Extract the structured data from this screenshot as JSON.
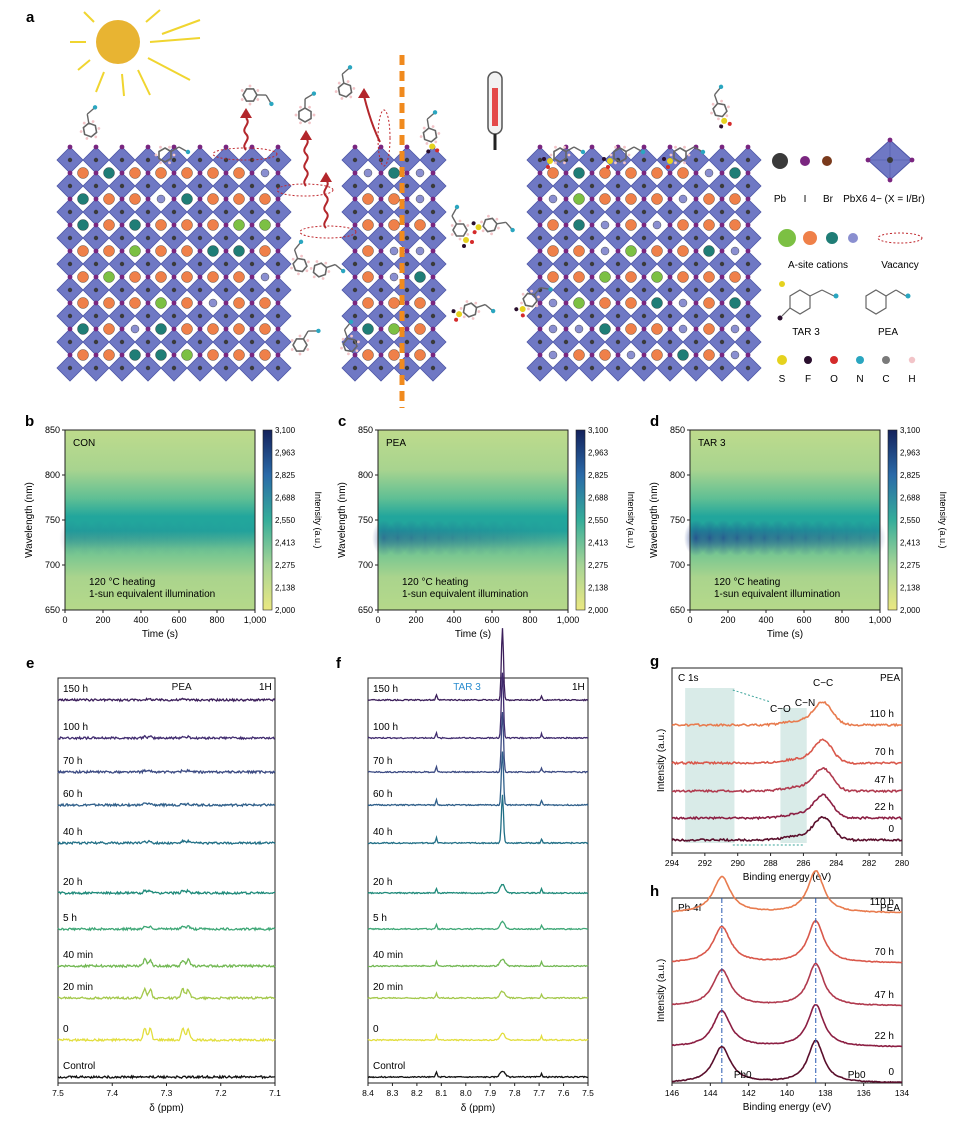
{
  "panel_a": {
    "letter": "a",
    "legend": {
      "elements": [
        "Pb",
        "I",
        "Br"
      ],
      "octahedron_label": "PbX6 4− (X = I/Br)",
      "a_site_label": "A-site cations",
      "vacancy_label": "Vacancy",
      "tar3_label": "TAR 3",
      "pea_label": "PEA",
      "atoms": [
        "S",
        "F",
        "O",
        "N",
        "C",
        "H"
      ]
    },
    "colors": {
      "octahedron": "#6f78c4",
      "sun": "#e8b432",
      "arrow": "#b3262b",
      "dashed_line": "#f08a1e",
      "pb": "#3a3a3a",
      "iodine": "#7a2680",
      "br": "#7a3a1c"
    }
  },
  "heatmaps": [
    {
      "letter": "b",
      "label": "CON",
      "chart_data": {
        "type": "heatmap",
        "x": [
          0,
          1000
        ],
        "y": [
          650,
          850
        ],
        "xlabel": "Time (s)",
        "ylabel": "Wavelength (nm)",
        "xticks": [
          "0",
          "200",
          "400",
          "600",
          "800",
          "1,000"
        ],
        "yticks": [
          "650",
          "700",
          "750",
          "800",
          "850"
        ],
        "colorbar_ticks": [
          "2,000",
          "2,138",
          "2,275",
          "2,413",
          "2,550",
          "2,688",
          "2,825",
          "2,963",
          "3,100"
        ],
        "colorbar_label": "Intensity (a.u.)",
        "peak_wavelength": 730,
        "peak_intensity_start": 2550,
        "peak_intensity_end": 2450
      },
      "annotation": [
        "120 °C heating",
        "1-sun equivalent illumination"
      ]
    },
    {
      "letter": "c",
      "label": "PEA",
      "chart_data": {
        "type": "heatmap",
        "x": [
          0,
          1000
        ],
        "y": [
          650,
          850
        ],
        "xlabel": "Time (s)",
        "ylabel": "Wavelength (nm)",
        "xticks": [
          "0",
          "200",
          "400",
          "600",
          "800",
          "1,000"
        ],
        "yticks": [
          "650",
          "700",
          "750",
          "800",
          "850"
        ],
        "colorbar_ticks": [
          "2,000",
          "2,138",
          "2,275",
          "2,413",
          "2,550",
          "2,688",
          "2,825",
          "2,963",
          "3,100"
        ],
        "colorbar_label": "Intensity (a.u.)",
        "peak_wavelength": 730,
        "peak_intensity_start": 2800,
        "peak_intensity_end": 2450
      },
      "annotation": [
        "120 °C heating",
        "1-sun equivalent illumination"
      ]
    },
    {
      "letter": "d",
      "label": "TAR 3",
      "chart_data": {
        "type": "heatmap",
        "x": [
          0,
          1000
        ],
        "y": [
          650,
          850
        ],
        "xlabel": "Time (s)",
        "ylabel": "Wavelength (nm)",
        "xticks": [
          "0",
          "200",
          "400",
          "600",
          "800",
          "1,000"
        ],
        "yticks": [
          "650",
          "700",
          "750",
          "800",
          "850"
        ],
        "colorbar_ticks": [
          "2,000",
          "2,138",
          "2,275",
          "2,413",
          "2,550",
          "2,688",
          "2,825",
          "2,963",
          "3,100"
        ],
        "colorbar_label": "Intensity (a.u.)",
        "peak_wavelength": 730,
        "peak_intensity_start": 3000,
        "peak_intensity_end": 2650
      },
      "annotation": [
        "120 °C heating",
        "1-sun equivalent illumination"
      ]
    }
  ],
  "nmr": [
    {
      "letter": "e",
      "title": "PEA",
      "nucleus": "1H",
      "chart_data": {
        "type": "line",
        "xlabel": "δ (ppm)",
        "xlim": [
          7.5,
          7.1
        ],
        "xticks": [
          "7.5",
          "7.4",
          "7.3",
          "7.2",
          "7.1"
        ],
        "series": [
          "150 h",
          "100 h",
          "70 h",
          "60 h",
          "40 h",
          "20 h",
          "5 h",
          "40 min",
          "20 min",
          "0",
          "Control"
        ],
        "peaks_ppm": [
          7.34,
          7.33,
          7.27,
          7.26
        ],
        "relative_peak_height": [
          0.05,
          0.08,
          0.09,
          0.1,
          0.12,
          0.15,
          0.2,
          0.4,
          0.55,
          0.7,
          0.0
        ]
      }
    },
    {
      "letter": "f",
      "title": "TAR 3",
      "nucleus": "1H",
      "chart_data": {
        "type": "line",
        "xlabel": "δ (ppm)",
        "xlim": [
          8.4,
          7.5
        ],
        "xticks": [
          "8.4",
          "8.3",
          "8.2",
          "8.1",
          "8.0",
          "7.9",
          "7.8",
          "7.7",
          "7.6",
          "7.5"
        ],
        "series": [
          "150 h",
          "100 h",
          "70 h",
          "60 h",
          "40 h",
          "20 h",
          "5 h",
          "40 min",
          "20 min",
          "0",
          "Control"
        ],
        "peaks_ppm": [
          8.12,
          7.85,
          7.69
        ],
        "relative_peak_height": [
          12,
          11,
          10,
          9,
          8,
          1.4,
          1.2,
          1.1,
          1.1,
          1.1,
          1.0
        ]
      }
    }
  ],
  "xps": [
    {
      "letter": "g",
      "core_level": "C 1s",
      "sample": "PEA",
      "chart_data": {
        "type": "line",
        "xlabel": "Binding energy (eV)",
        "ylabel": "Intensity (a.u.)",
        "xlim": [
          294,
          280
        ],
        "xticks": [
          "294",
          "292",
          "290",
          "288",
          "286",
          "284",
          "282",
          "280"
        ],
        "series": [
          "110 h",
          "70 h",
          "47 h",
          "22 h",
          "0"
        ],
        "peak_eV": 284.8,
        "annotations": [
          "C−C",
          "C−O",
          "C−N"
        ]
      }
    },
    {
      "letter": "h",
      "core_level": "Pb 4f",
      "sample": "PEA",
      "chart_data": {
        "type": "line",
        "xlabel": "Binding energy (eV)",
        "ylabel": "Intensity (a.u.)",
        "xlim": [
          146,
          134
        ],
        "xticks": [
          "146",
          "144",
          "142",
          "140",
          "138",
          "136",
          "134"
        ],
        "series": [
          "110 h",
          "70 h",
          "47 h",
          "22 h",
          "0"
        ],
        "peaks_eV": [
          143.4,
          138.5
        ],
        "annotations": [
          "Pb0",
          "Pb0"
        ]
      }
    }
  ],
  "series_colors": {
    "nmr": [
      "#3b1e5a",
      "#3f2a6e",
      "#3b4a82",
      "#2f5f8a",
      "#216f86",
      "#1f8a7a",
      "#3ea776",
      "#72b853",
      "#a3c84a",
      "#e2de3e",
      "#111111"
    ],
    "xps": [
      "#e87b4e",
      "#d9584b",
      "#b03a4e",
      "#8c1f43",
      "#5a0f2c"
    ]
  }
}
